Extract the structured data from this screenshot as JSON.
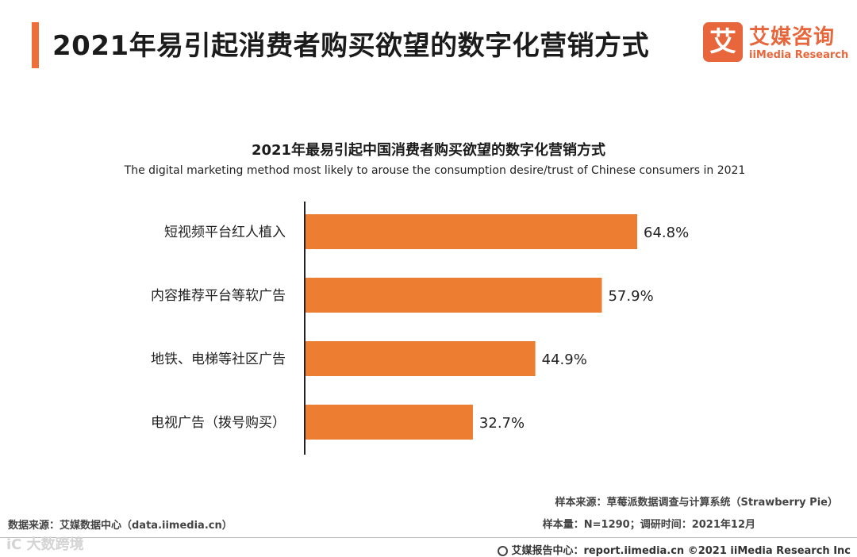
{
  "header": {
    "title": "2021年易引起消费者购买欲望的数字化营销方式",
    "logo_mark": "艾",
    "logo_cn": "艾媒咨询",
    "logo_en": "iiMedia Research"
  },
  "chart_data": {
    "type": "bar",
    "orientation": "horizontal",
    "title": "2021年最易引起中国消费者购买欲望的数字化营销方式",
    "subtitle": "The digital marketing method most likely to arouse the consumption desire/trust of Chinese consumers in 2021",
    "categories": [
      "短视频平台红人植入",
      "内容推荐平台等软广告",
      "地铁、电梯等社区广告",
      "电视广告（拨号购买）"
    ],
    "values": [
      64.8,
      57.9,
      44.9,
      32.7
    ],
    "data_labels": [
      "64.8%",
      "57.9%",
      "44.9%",
      "32.7%"
    ],
    "unit": "%",
    "xlim": [
      0,
      100
    ],
    "grid": false,
    "legend": "none",
    "bar_color": "#ed7d31"
  },
  "footer": {
    "sample_source": "样本来源：草莓派数据调查与计算系统（Strawberry Pie）",
    "sample_size": "样本量：N=1290；调研时间：2021年12月",
    "data_source": "数据来源：艾媒数据中心（data.iimedia.cn）",
    "watermark": "iC 大数跨境",
    "report": "艾媒报告中心：report.iimedia.cn ©2021  iiMedia Research  Inc"
  }
}
